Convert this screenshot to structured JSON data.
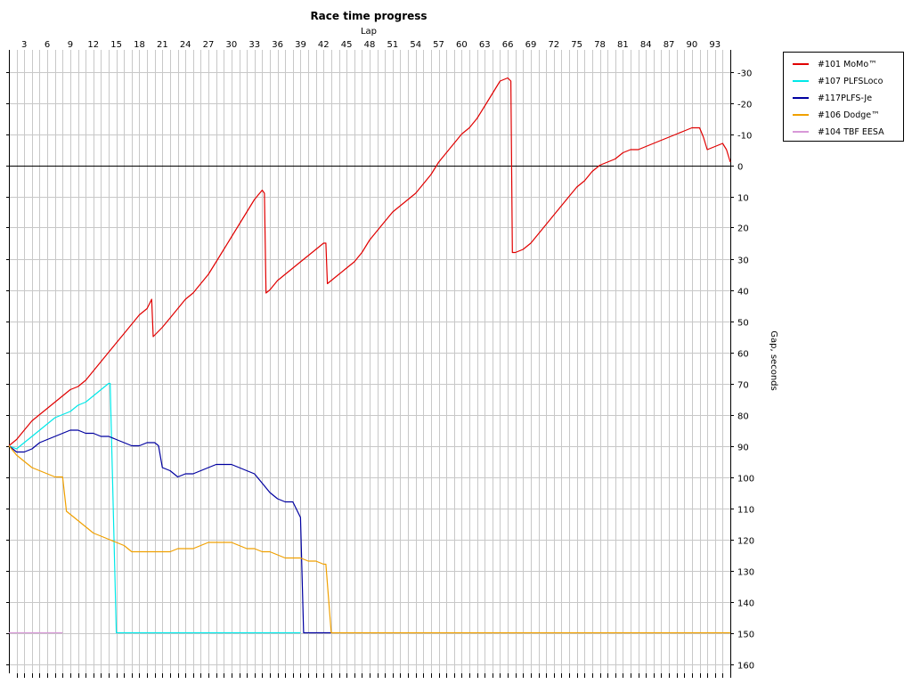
{
  "chart_data": {
    "type": "line",
    "title": "Race time progress",
    "xlabel": "Lap",
    "ylabel": "Gap, seconds",
    "xlim": [
      1,
      95
    ],
    "ylim": [
      -37,
      163
    ],
    "y_reversed": true,
    "x_ticks": [
      3,
      6,
      9,
      12,
      15,
      18,
      21,
      24,
      27,
      30,
      33,
      36,
      39,
      42,
      45,
      48,
      51,
      54,
      57,
      60,
      63,
      66,
      69,
      72,
      75,
      78,
      81,
      84,
      87,
      90,
      93
    ],
    "y_ticks": [
      -30,
      -20,
      -10,
      0,
      10,
      20,
      30,
      40,
      50,
      60,
      70,
      80,
      90,
      100,
      110,
      120,
      130,
      140,
      150,
      160
    ],
    "grid": true,
    "legend_position": "right",
    "series": [
      {
        "name": "#101 MoMo™",
        "color": "#e00000",
        "points": [
          [
            1,
            90
          ],
          [
            2,
            88
          ],
          [
            3,
            85
          ],
          [
            4,
            82
          ],
          [
            5,
            80
          ],
          [
            6,
            78
          ],
          [
            7,
            76
          ],
          [
            8,
            74
          ],
          [
            9,
            72
          ],
          [
            10,
            71
          ],
          [
            11,
            69
          ],
          [
            12,
            66
          ],
          [
            13,
            63
          ],
          [
            14,
            60
          ],
          [
            15,
            57
          ],
          [
            16,
            54
          ],
          [
            17,
            51
          ],
          [
            18,
            48
          ],
          [
            19,
            46
          ],
          [
            19.6,
            43
          ],
          [
            19.8,
            55
          ],
          [
            21,
            52
          ],
          [
            22,
            49
          ],
          [
            23,
            46
          ],
          [
            24,
            43
          ],
          [
            25,
            41
          ],
          [
            26,
            38
          ],
          [
            27,
            35
          ],
          [
            28,
            31
          ],
          [
            29,
            27
          ],
          [
            30,
            23
          ],
          [
            31,
            19
          ],
          [
            32,
            15
          ],
          [
            33,
            11
          ],
          [
            34,
            8
          ],
          [
            34.3,
            9
          ],
          [
            34.5,
            41
          ],
          [
            35,
            40
          ],
          [
            36,
            37
          ],
          [
            37,
            35
          ],
          [
            38,
            33
          ],
          [
            39,
            31
          ],
          [
            40,
            29
          ],
          [
            41,
            27
          ],
          [
            42,
            25
          ],
          [
            42.3,
            25
          ],
          [
            42.5,
            38
          ],
          [
            43,
            37
          ],
          [
            44,
            35
          ],
          [
            45,
            33
          ],
          [
            46,
            31
          ],
          [
            47,
            28
          ],
          [
            48,
            24
          ],
          [
            49,
            21
          ],
          [
            50,
            18
          ],
          [
            51,
            15
          ],
          [
            52,
            13
          ],
          [
            53,
            11
          ],
          [
            54,
            9
          ],
          [
            55,
            6
          ],
          [
            56,
            3
          ],
          [
            57,
            -1
          ],
          [
            58,
            -4
          ],
          [
            59,
            -7
          ],
          [
            60,
            -10
          ],
          [
            61,
            -12
          ],
          [
            62,
            -15
          ],
          [
            63,
            -19
          ],
          [
            64,
            -23
          ],
          [
            65,
            -27
          ],
          [
            66,
            -28
          ],
          [
            66.4,
            -27
          ],
          [
            66.6,
            28
          ],
          [
            67,
            28
          ],
          [
            68,
            27
          ],
          [
            69,
            25
          ],
          [
            70,
            22
          ],
          [
            71,
            19
          ],
          [
            72,
            16
          ],
          [
            73,
            13
          ],
          [
            74,
            10
          ],
          [
            75,
            7
          ],
          [
            76,
            5
          ],
          [
            77,
            2
          ],
          [
            78,
            0
          ],
          [
            79,
            -1
          ],
          [
            80,
            -2
          ],
          [
            81,
            -4
          ],
          [
            82,
            -5
          ],
          [
            83,
            -5
          ],
          [
            84,
            -6
          ],
          [
            85,
            -7
          ],
          [
            86,
            -8
          ],
          [
            87,
            -9
          ],
          [
            88,
            -10
          ],
          [
            89,
            -11
          ],
          [
            90,
            -12
          ],
          [
            91,
            -12
          ],
          [
            91.5,
            -9
          ],
          [
            92,
            -5
          ],
          [
            93,
            -6
          ],
          [
            94,
            -7
          ],
          [
            94.5,
            -5
          ],
          [
            95,
            -1
          ]
        ]
      },
      {
        "name": "#107 PLFSLoco",
        "color": "#00e8e8",
        "points": [
          [
            1,
            90
          ],
          [
            2,
            91
          ],
          [
            3,
            89
          ],
          [
            4,
            87
          ],
          [
            5,
            85
          ],
          [
            6,
            83
          ],
          [
            7,
            81
          ],
          [
            8,
            80
          ],
          [
            9,
            79
          ],
          [
            10,
            77
          ],
          [
            11,
            76
          ],
          [
            12,
            74
          ],
          [
            13,
            72
          ],
          [
            14,
            70
          ],
          [
            14.2,
            70
          ],
          [
            15,
            150
          ],
          [
            39,
            150
          ]
        ]
      },
      {
        "name": "#117PLFS-Je",
        "color": "#0000a0",
        "points": [
          [
            1,
            90
          ],
          [
            2,
            92
          ],
          [
            3,
            92
          ],
          [
            4,
            91
          ],
          [
            5,
            89
          ],
          [
            6,
            88
          ],
          [
            7,
            87
          ],
          [
            8,
            86
          ],
          [
            9,
            85
          ],
          [
            10,
            85
          ],
          [
            11,
            86
          ],
          [
            12,
            86
          ],
          [
            13,
            87
          ],
          [
            14,
            87
          ],
          [
            15,
            88
          ],
          [
            16,
            89
          ],
          [
            17,
            90
          ],
          [
            18,
            90
          ],
          [
            19,
            89
          ],
          [
            20,
            89
          ],
          [
            20.5,
            90
          ],
          [
            21,
            97
          ],
          [
            22,
            98
          ],
          [
            23,
            100
          ],
          [
            24,
            99
          ],
          [
            25,
            99
          ],
          [
            26,
            98
          ],
          [
            27,
            97
          ],
          [
            28,
            96
          ],
          [
            29,
            96
          ],
          [
            30,
            96
          ],
          [
            31,
            97
          ],
          [
            32,
            98
          ],
          [
            33,
            99
          ],
          [
            34,
            102
          ],
          [
            35,
            105
          ],
          [
            36,
            107
          ],
          [
            37,
            108
          ],
          [
            38,
            108
          ],
          [
            39,
            113
          ],
          [
            39.4,
            150
          ],
          [
            43,
            150
          ]
        ]
      },
      {
        "name": "#106 Dodge™",
        "color": "#f0a000",
        "points": [
          [
            1,
            90
          ],
          [
            2,
            93
          ],
          [
            3,
            95
          ],
          [
            4,
            97
          ],
          [
            5,
            98
          ],
          [
            6,
            99
          ],
          [
            7,
            100
          ],
          [
            8,
            100
          ],
          [
            8.5,
            111
          ],
          [
            9,
            112
          ],
          [
            10,
            114
          ],
          [
            11,
            116
          ],
          [
            12,
            118
          ],
          [
            13,
            119
          ],
          [
            14,
            120
          ],
          [
            15,
            121
          ],
          [
            16,
            122
          ],
          [
            17,
            124
          ],
          [
            18,
            124
          ],
          [
            19,
            124
          ],
          [
            20,
            124
          ],
          [
            21,
            124
          ],
          [
            22,
            124
          ],
          [
            23,
            123
          ],
          [
            24,
            123
          ],
          [
            25,
            123
          ],
          [
            26,
            122
          ],
          [
            27,
            121
          ],
          [
            28,
            121
          ],
          [
            29,
            121
          ],
          [
            30,
            121
          ],
          [
            31,
            122
          ],
          [
            32,
            123
          ],
          [
            33,
            123
          ],
          [
            34,
            124
          ],
          [
            35,
            124
          ],
          [
            36,
            125
          ],
          [
            37,
            126
          ],
          [
            38,
            126
          ],
          [
            39,
            126
          ],
          [
            40,
            127
          ],
          [
            41,
            127
          ],
          [
            42,
            128
          ],
          [
            42.3,
            128
          ],
          [
            43,
            150
          ],
          [
            95,
            150
          ]
        ]
      },
      {
        "name": "#104 TBF EESA",
        "color": "#d898d8",
        "points": [
          [
            1,
            150
          ],
          [
            8,
            150
          ]
        ]
      }
    ]
  }
}
